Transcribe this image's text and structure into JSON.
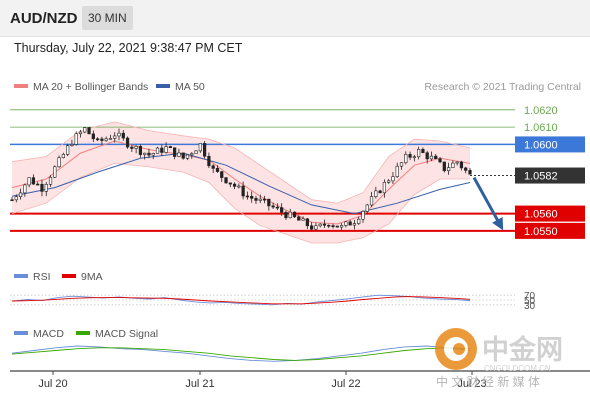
{
  "header": {
    "symbol": "AUD/NZD",
    "timeframe": "30 MIN",
    "datetime": "Thursday, July 22, 2021 9:38:47 PM CET"
  },
  "legend": {
    "bollinger": "MA 20 + Bollinger Bands",
    "ma50": "MA 50",
    "credit": "Research © 2021 Trading Central"
  },
  "rsi_legend": {
    "rsi": "RSI",
    "ma": "9MA"
  },
  "macd_legend": {
    "macd": "MACD",
    "signal": "MACD Signal"
  },
  "watermark": {
    "logo_text": "中金网",
    "url": "CNGOLDCOM.CN",
    "tagline": "中 文 财 经 新 媒 体"
  },
  "colors": {
    "price_up": "#ffffff",
    "price_down": "#222222",
    "bollinger": "#f08080",
    "bollinger_fill": "#fde3e3",
    "ma50": "#3a5ea8",
    "target": "#6aa84f",
    "pivot": "#3c78d8",
    "support": "#e00000",
    "current": "#333333",
    "arrow": "#2e5f9e",
    "rsi": "#6a8ed8",
    "rsi_ma": "#e00000",
    "macd": "#6a8ed8",
    "macd_signal": "#38a800"
  },
  "chart_data": [
    {
      "type": "candlestick",
      "title": "AUD/NZD",
      "x_tick_labels": [
        "Jul 20",
        "Jul 21",
        "Jul 22",
        "Jul 23"
      ],
      "ylim": [
        1.0532,
        1.0628
      ],
      "levels": [
        {
          "label": "1.0620",
          "value": 1.062,
          "kind": "target"
        },
        {
          "label": "1.0610",
          "value": 1.061,
          "kind": "target"
        },
        {
          "label": "1.0600",
          "value": 1.06,
          "kind": "pivot"
        },
        {
          "label": "1.0582",
          "value": 1.0582,
          "kind": "current"
        },
        {
          "label": "1.0560",
          "value": 1.056,
          "kind": "support"
        },
        {
          "label": "1.0550",
          "value": 1.055,
          "kind": "support"
        }
      ],
      "close_path": [
        [
          0,
          1.0568
        ],
        [
          4,
          1.058
        ],
        [
          7,
          1.0575
        ],
        [
          11,
          1.059
        ],
        [
          14,
          1.0602
        ],
        [
          17,
          1.0609
        ],
        [
          20,
          1.0601
        ],
        [
          24,
          1.0606
        ],
        [
          28,
          1.0599
        ],
        [
          32,
          1.0594
        ],
        [
          36,
          1.0598
        ],
        [
          40,
          1.0592
        ],
        [
          44,
          1.06
        ],
        [
          47,
          1.0585
        ],
        [
          51,
          1.0578
        ],
        [
          55,
          1.057
        ],
        [
          59,
          1.0566
        ],
        [
          63,
          1.0561
        ],
        [
          67,
          1.0556
        ],
        [
          71,
          1.0551
        ],
        [
          74,
          1.0555
        ],
        [
          77,
          1.0552
        ],
        [
          80,
          1.0556
        ],
        [
          83,
          1.0565
        ],
        [
          86,
          1.0574
        ],
        [
          89,
          1.0583
        ],
        [
          92,
          1.0592
        ],
        [
          95,
          1.0596
        ],
        [
          98,
          1.0592
        ],
        [
          101,
          1.0586
        ],
        [
          104,
          1.059
        ],
        [
          107,
          1.0582
        ]
      ],
      "ma20": [
        [
          0,
          1.0575
        ],
        [
          8,
          1.058
        ],
        [
          16,
          1.0595
        ],
        [
          24,
          1.0602
        ],
        [
          32,
          1.0597
        ],
        [
          40,
          1.0594
        ],
        [
          46,
          1.0591
        ],
        [
          52,
          1.058
        ],
        [
          58,
          1.057
        ],
        [
          64,
          1.0562
        ],
        [
          70,
          1.0555
        ],
        [
          76,
          1.0554
        ],
        [
          82,
          1.0559
        ],
        [
          88,
          1.0574
        ],
        [
          94,
          1.0588
        ],
        [
          100,
          1.0592
        ],
        [
          107,
          1.0589
        ]
      ],
      "bollinger_upper": [
        [
          0,
          1.059
        ],
        [
          8,
          1.0593
        ],
        [
          16,
          1.0608
        ],
        [
          24,
          1.0613
        ],
        [
          32,
          1.0608
        ],
        [
          40,
          1.0605
        ],
        [
          46,
          1.0603
        ],
        [
          52,
          1.0598
        ],
        [
          58,
          1.0588
        ],
        [
          64,
          1.0578
        ],
        [
          70,
          1.0568
        ],
        [
          76,
          1.0566
        ],
        [
          82,
          1.0572
        ],
        [
          88,
          1.0593
        ],
        [
          94,
          1.0603
        ],
        [
          100,
          1.0602
        ],
        [
          107,
          1.0598
        ]
      ],
      "bollinger_lower": [
        [
          0,
          1.056
        ],
        [
          8,
          1.0566
        ],
        [
          16,
          1.0581
        ],
        [
          24,
          1.0589
        ],
        [
          32,
          1.0587
        ],
        [
          40,
          1.0584
        ],
        [
          46,
          1.0578
        ],
        [
          52,
          1.0563
        ],
        [
          58,
          1.0553
        ],
        [
          64,
          1.0548
        ],
        [
          70,
          1.0543
        ],
        [
          76,
          1.0543
        ],
        [
          82,
          1.0546
        ],
        [
          88,
          1.0554
        ],
        [
          94,
          1.0571
        ],
        [
          100,
          1.058
        ],
        [
          107,
          1.058
        ]
      ],
      "ma50": [
        [
          0,
          1.057
        ],
        [
          10,
          1.0575
        ],
        [
          20,
          1.0584
        ],
        [
          30,
          1.0592
        ],
        [
          40,
          1.0595
        ],
        [
          50,
          1.0588
        ],
        [
          60,
          1.0576
        ],
        [
          70,
          1.0565
        ],
        [
          80,
          1.056
        ],
        [
          90,
          1.0566
        ],
        [
          100,
          1.0574
        ],
        [
          107,
          1.0578
        ]
      ],
      "forecast_arrow": {
        "from": [
          107,
          1.0582
        ],
        "to": [
          115,
          1.055
        ]
      }
    },
    {
      "type": "line",
      "title": "RSI",
      "ylim": [
        0,
        100
      ],
      "y_tick_labels": [
        "70",
        "50",
        "30"
      ],
      "series": [
        {
          "name": "RSI",
          "values": [
            45,
            52,
            48,
            60,
            66,
            62,
            58,
            63,
            57,
            54,
            60,
            50,
            42,
            38,
            40,
            35,
            33,
            30,
            36,
            33,
            42,
            48,
            55,
            63,
            70,
            68,
            64,
            58,
            54,
            52,
            48
          ]
        },
        {
          "name": "9MA",
          "values": [
            46,
            47,
            49,
            53,
            57,
            59,
            60,
            60,
            59,
            58,
            57,
            54,
            50,
            46,
            43,
            40,
            37,
            34,
            34,
            34,
            37,
            41,
            46,
            52,
            57,
            62,
            64,
            63,
            60,
            57,
            53
          ]
        }
      ]
    },
    {
      "type": "line",
      "title": "MACD",
      "series": [
        {
          "name": "MACD",
          "values": [
            0.2,
            0.5,
            0.8,
            1.0,
            0.9,
            0.7,
            0.6,
            0.4,
            0.2,
            -0.1,
            -0.4,
            -0.6,
            -0.7,
            -0.6,
            -0.4,
            -0.1,
            0.2,
            0.6,
            0.9,
            1.0,
            0.8,
            0.5
          ]
        },
        {
          "name": "MACD Signal",
          "values": [
            0.1,
            0.3,
            0.5,
            0.7,
            0.8,
            0.8,
            0.7,
            0.6,
            0.4,
            0.2,
            -0.1,
            -0.3,
            -0.5,
            -0.6,
            -0.5,
            -0.3,
            -0.1,
            0.2,
            0.5,
            0.7,
            0.8,
            0.7
          ]
        }
      ]
    }
  ]
}
